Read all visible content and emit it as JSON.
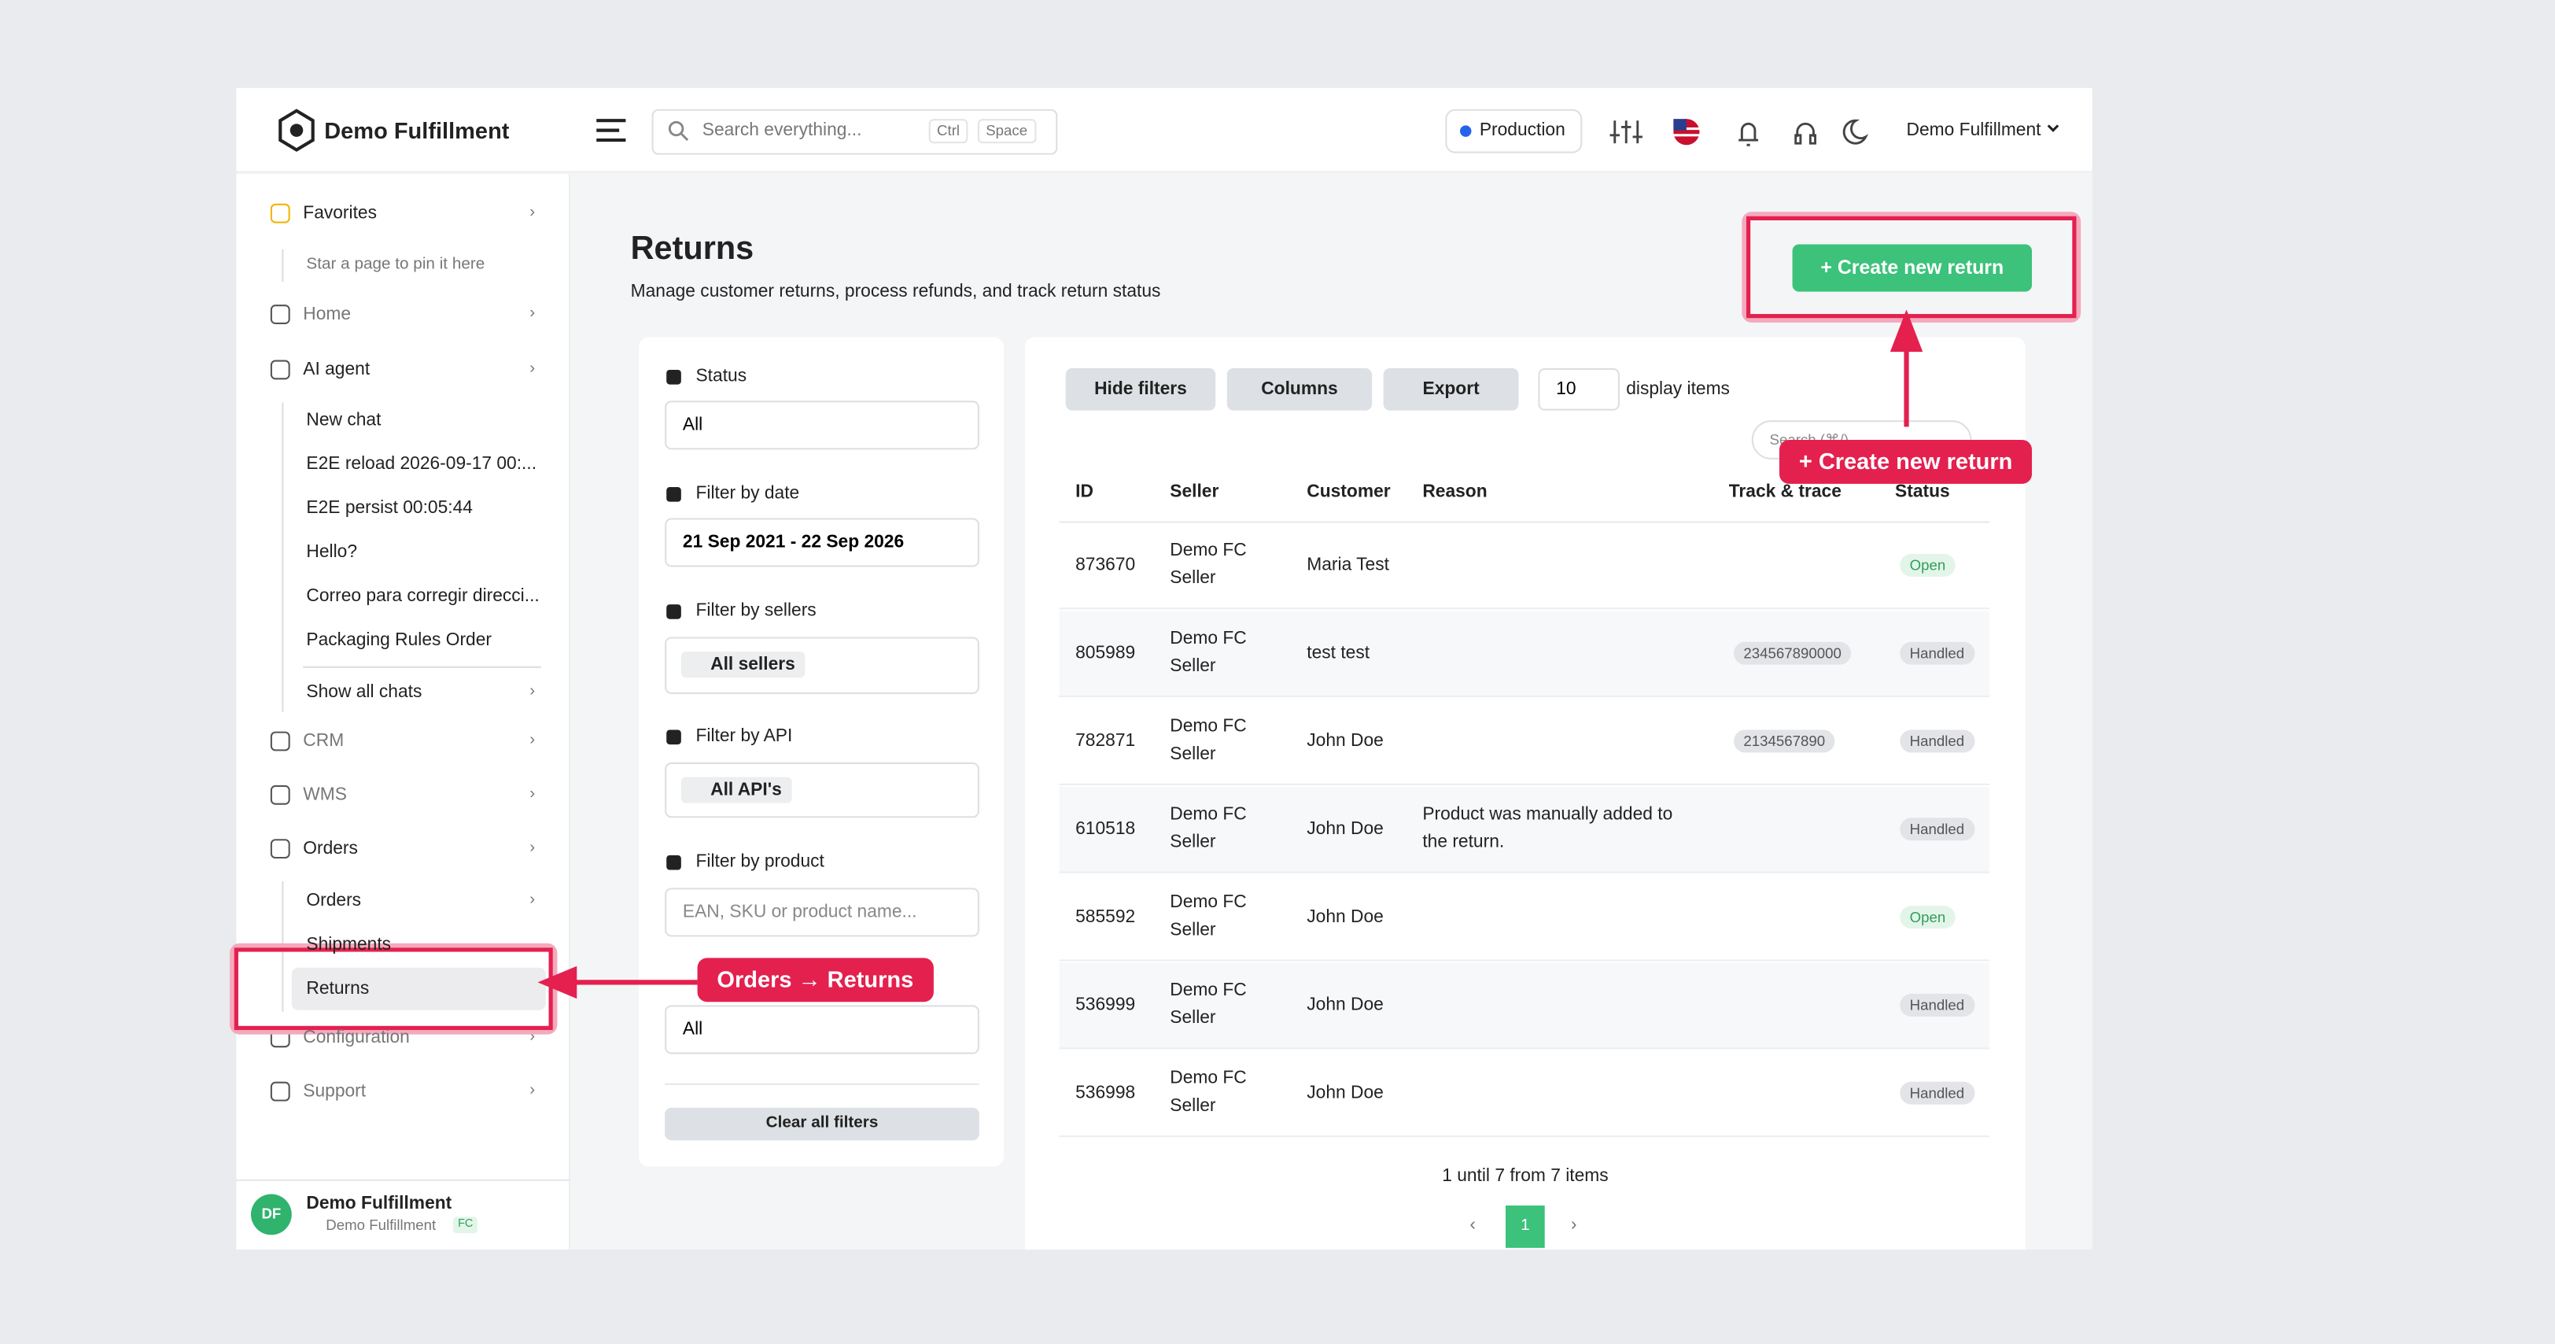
{
  "header": {
    "brand": "Demo Fulfillment",
    "search_placeholder": "Search everything...",
    "kbd": [
      "Ctrl",
      "Space"
    ],
    "environment": "Production",
    "user": "Demo Fulfillment"
  },
  "sidebar": {
    "favorites": "Favorites",
    "favorites_hint": "Star a page to pin it here",
    "home": "Home",
    "ai_agent": "AI agent",
    "chats": [
      "New chat",
      "E2E reload 2026-09-17 00:...",
      "E2E persist 00:05:44",
      "Hello?",
      "Correo para corregir direcci...",
      "Packaging Rules Order"
    ],
    "show_all_chats": "Show all chats",
    "crm": "CRM",
    "wms": "WMS",
    "orders": "Orders",
    "orders_items": [
      "Orders",
      "Shipments",
      "Returns"
    ],
    "configuration": "Configuration",
    "support": "Support",
    "footer": {
      "initials": "DF",
      "name": "Demo Fulfillment",
      "org": "Demo Fulfillment",
      "badge": "FC"
    }
  },
  "page": {
    "title": "Returns",
    "subtitle": "Manage customer returns, process refunds, and track return status",
    "create_button": "+ Create new return"
  },
  "filters": {
    "status_label": "Status",
    "status_value": "All",
    "date_label": "Filter by date",
    "date_value": "21 Sep 2021 - 22 Sep 2026",
    "sellers_label": "Filter by sellers",
    "sellers_chip": "All sellers",
    "api_label": "Filter by API",
    "api_chip": "All API's",
    "product_label": "Filter by product",
    "product_placeholder": "EAN, SKU or product name...",
    "last_value": "All",
    "clear": "Clear all filters"
  },
  "toolbar": {
    "hide_filters": "Hide filters",
    "columns": "Columns",
    "export": "Export",
    "page_size": "10",
    "page_size_label": "display items",
    "search_placeholder": "Search (⌘/)"
  },
  "table": {
    "columns": [
      "ID",
      "Seller",
      "Customer",
      "Reason",
      "Track & trace",
      "Status"
    ],
    "rows": [
      {
        "id": "873670",
        "seller": "Demo FC Seller",
        "customer": "Maria Test",
        "status": "Open"
      },
      {
        "id": "805989",
        "seller": "Demo FC Seller",
        "customer": "test test",
        "track": "234567890000",
        "status": "Handled"
      },
      {
        "id": "782871",
        "seller": "Demo FC Seller",
        "customer": "John Doe",
        "track": "2134567890",
        "status": "Handled"
      },
      {
        "id": "610518",
        "seller": "Demo FC Seller",
        "customer": "John Doe",
        "reason": "Product was manually added to the return.",
        "status": "Handled"
      },
      {
        "id": "585592",
        "seller": "Demo FC Seller",
        "customer": "John Doe",
        "status": "Open"
      },
      {
        "id": "536999",
        "seller": "Demo FC Seller",
        "customer": "John Doe",
        "status": "Handled"
      },
      {
        "id": "536998",
        "seller": "Demo FC Seller",
        "customer": "John Doe",
        "status": "Handled"
      }
    ]
  },
  "pagination": {
    "summary": "1 until 7 from 7 items",
    "prev": "‹",
    "current": "1",
    "next": "›"
  },
  "annotations": [
    "Orders → Returns",
    "+ Create new return"
  ]
}
